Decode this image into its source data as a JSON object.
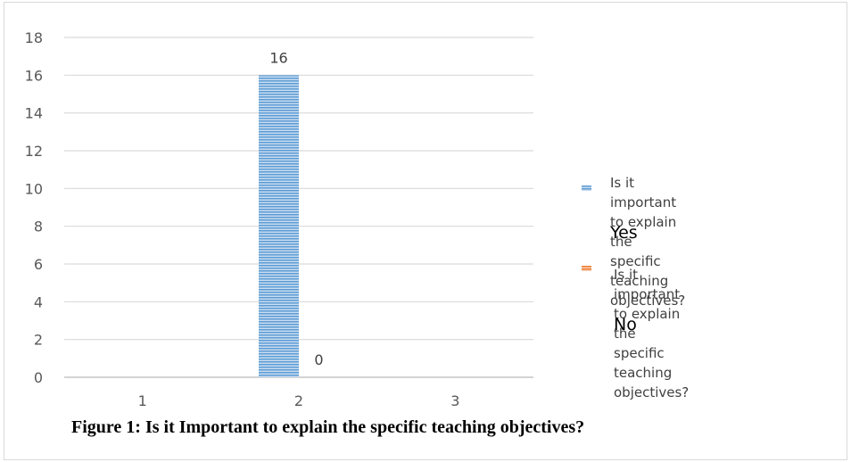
{
  "chart_data": {
    "type": "bar",
    "categories": [
      "1",
      "2",
      "3"
    ],
    "series": [
      {
        "name": "Is it important to explain the specific teaching objectives? Yes",
        "values": [
          null,
          16,
          null
        ],
        "data_labels": [
          "",
          "16",
          ""
        ],
        "color": "#5b9bd5"
      },
      {
        "name": "Is it important to explain the specific teaching objectives? No",
        "values": [
          null,
          0,
          null
        ],
        "data_labels": [
          "",
          "0",
          ""
        ],
        "color": "#ed7d31"
      }
    ],
    "ylim": [
      0,
      18
    ],
    "yticks": [
      0,
      2,
      4,
      6,
      8,
      10,
      12,
      14,
      16,
      18
    ],
    "grid": true,
    "legend_position": "right",
    "xlabel": "",
    "ylabel": ""
  },
  "legend": {
    "yes_text": "Is it important to explain the\nspecific teaching objectives?",
    "yes_word": "Yes",
    "no_text": "Is it important to explain the\nspecific teaching objectives?",
    "no_word": "No"
  },
  "caption": "Figure 1: Is it Important  to explain  the specific teaching objectives?"
}
